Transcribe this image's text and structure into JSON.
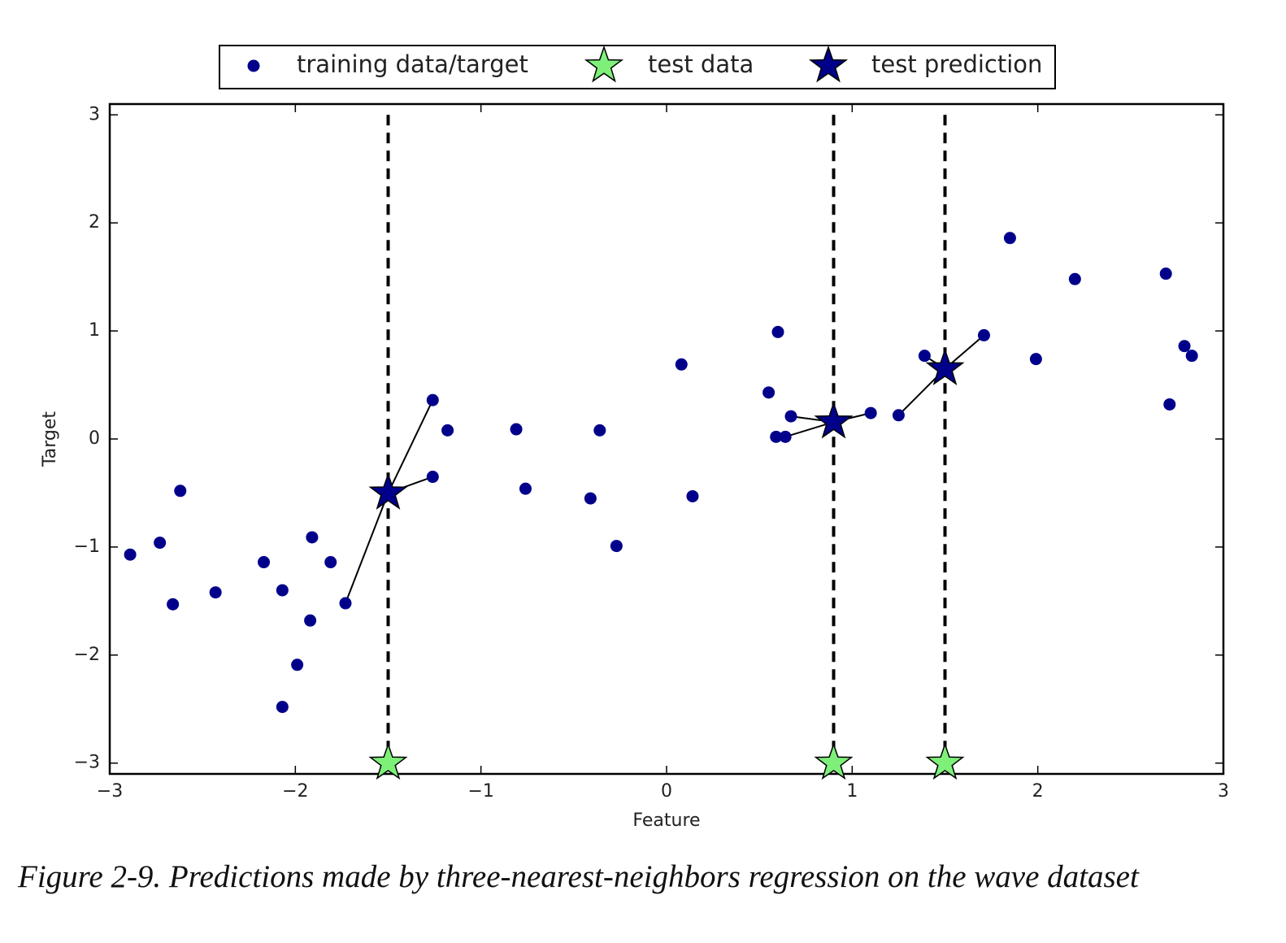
{
  "chart_data": {
    "type": "scatter",
    "xlabel": "Feature",
    "ylabel": "Target",
    "caption": "Figure 2-9. Predictions made by three-nearest-neighbors regression on the wave dataset",
    "xlim": [
      -3,
      3
    ],
    "ylim": [
      -3.1,
      3.1
    ],
    "xticks": [
      {
        "value": -3,
        "label": "−3"
      },
      {
        "value": -2,
        "label": "−2"
      },
      {
        "value": -1,
        "label": "−1"
      },
      0,
      1,
      2,
      3
    ],
    "yticks": [
      {
        "value": -3,
        "label": "−3"
      },
      {
        "value": -2,
        "label": "−2"
      },
      {
        "value": -1,
        "label": "−1"
      },
      0,
      1,
      2,
      3
    ],
    "legend": "upper center outside",
    "series": [
      {
        "name": "training data/target",
        "color": "#00008b",
        "marker": "circle",
        "x": [
          -2.89,
          -2.73,
          -2.66,
          -2.62,
          -2.43,
          -2.17,
          -2.07,
          -2.07,
          -1.99,
          -1.92,
          -1.91,
          -1.81,
          -1.73,
          -1.26,
          -1.26,
          -1.18,
          -0.81,
          -0.76,
          -0.41,
          -0.36,
          -0.27,
          0.08,
          0.14,
          0.55,
          0.6,
          0.59,
          0.64,
          0.67,
          1.1,
          1.25,
          1.39,
          1.71,
          1.85,
          1.99,
          2.2,
          2.69,
          2.71,
          2.79,
          2.83
        ],
        "values": [
          -1.07,
          -0.96,
          -1.53,
          -0.48,
          -1.42,
          -1.14,
          -1.4,
          -2.48,
          -2.09,
          -1.68,
          -0.91,
          -1.14,
          -1.52,
          0.36,
          -0.35,
          0.08,
          0.09,
          -0.46,
          -0.55,
          0.08,
          -0.99,
          0.69,
          -0.53,
          0.43,
          0.99,
          0.02,
          0.02,
          0.21,
          0.24,
          0.22,
          0.77,
          0.96,
          1.86,
          0.74,
          1.48,
          1.53,
          0.32,
          0.86,
          0.77
        ]
      },
      {
        "name": "test data",
        "color": "#7ef07a",
        "marker": "star",
        "x": [
          -1.5,
          0.9,
          1.5
        ],
        "values": [
          -3,
          -3,
          -3
        ]
      },
      {
        "name": "test prediction",
        "color": "#00008b",
        "marker": "star",
        "x": [
          -1.5,
          0.9,
          1.5
        ],
        "values": [
          -0.5,
          0.157,
          0.65
        ]
      }
    ]
  }
}
